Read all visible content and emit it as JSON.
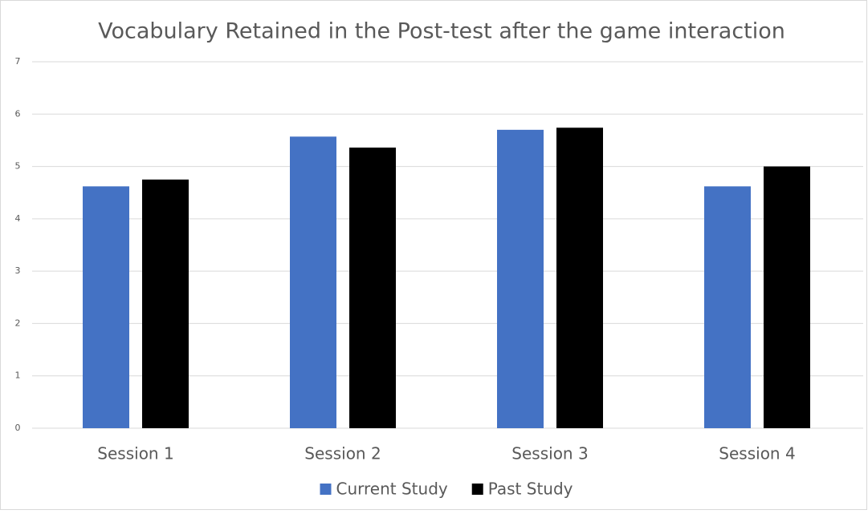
{
  "chart_data": {
    "type": "bar",
    "title": "Vocabulary Retained in the Post-test after the game interaction",
    "categories": [
      "Session 1",
      "Session 2",
      "Session 3",
      "Session 4"
    ],
    "series": [
      {
        "name": "Current Study",
        "color": "#4472c4",
        "values": [
          4.62,
          5.57,
          5.7,
          4.62
        ]
      },
      {
        "name": "Past Study",
        "color": "#000000",
        "values": [
          4.75,
          5.36,
          5.74,
          5.0
        ]
      }
    ],
    "ylim": [
      0,
      7
    ],
    "yticks": [
      0,
      1,
      2,
      3,
      4,
      5,
      6,
      7
    ],
    "grid": true,
    "legend": "bottom"
  }
}
